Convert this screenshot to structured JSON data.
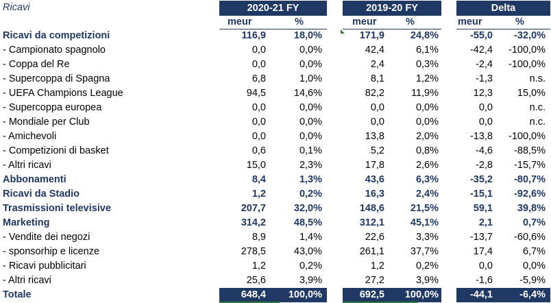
{
  "title": "Ricavi",
  "groups": [
    "2020-21 FY",
    "2019-20 FY",
    "Delta"
  ],
  "subheaders": [
    "meur",
    "%",
    "meur",
    "%",
    "meur",
    "%"
  ],
  "rows": [
    {
      "label": "Ricavi da competizioni",
      "bold": true,
      "v": [
        "116,9",
        "18,0%",
        "171,9",
        "24,8%",
        "-55,0",
        "-32,0%"
      ]
    },
    {
      "label": " - Campionato spagnolo",
      "bold": false,
      "v": [
        "0,0",
        "0,0%",
        "42,4",
        "6,1%",
        "-42,4",
        "-100,0%"
      ]
    },
    {
      "label": " - Coppa del Re",
      "bold": false,
      "v": [
        "0,0",
        "0,0%",
        "2,4",
        "0,3%",
        "-2,4",
        "-100,0%"
      ]
    },
    {
      "label": " - Supercoppa di Spagna",
      "bold": false,
      "v": [
        "6,8",
        "1,0%",
        "8,1",
        "1,2%",
        "-1,3",
        "n.s."
      ]
    },
    {
      "label": " - UEFA Champions League",
      "bold": false,
      "v": [
        "94,5",
        "14,6%",
        "82,2",
        "11,9%",
        "12,3",
        "15,0%"
      ]
    },
    {
      "label": " - Supercoppa europea",
      "bold": false,
      "v": [
        "0,0",
        "0,0%",
        "0,0",
        "0,0%",
        "0,0",
        "n.c."
      ]
    },
    {
      "label": " - Mondiale per Club",
      "bold": false,
      "v": [
        "0,0",
        "0,0%",
        "0,0",
        "0,0%",
        "0,0",
        "n.c."
      ]
    },
    {
      "label": " - Amichevoli",
      "bold": false,
      "v": [
        "0,0",
        "0,0%",
        "13,8",
        "2,0%",
        "-13,8",
        "-100,0%"
      ]
    },
    {
      "label": " - Competizioni di basket",
      "bold": false,
      "v": [
        "0,6",
        "0,1%",
        "5,2",
        "0,8%",
        "-4,6",
        "-88,5%"
      ]
    },
    {
      "label": " - Altri ricavi",
      "bold": false,
      "v": [
        "15,0",
        "2,3%",
        "17,8",
        "2,6%",
        "-2,8",
        "-15,7%"
      ]
    },
    {
      "label": "Abbonamenti",
      "bold": true,
      "v": [
        "8,4",
        "1,3%",
        "43,6",
        "6,3%",
        "-35,2",
        "-80,7%"
      ]
    },
    {
      "label": "Ricavi da Stadio",
      "bold": true,
      "v": [
        "1,2",
        "0,2%",
        "16,3",
        "2,4%",
        "-15,1",
        "-92,6%"
      ]
    },
    {
      "label": "Trasmissioni televisive",
      "bold": true,
      "v": [
        "207,7",
        "32,0%",
        "148,6",
        "21,5%",
        "59,1",
        "39,8%"
      ]
    },
    {
      "label": "Marketing",
      "bold": true,
      "v": [
        "314,2",
        "48,5%",
        "312,1",
        "45,1%",
        "2,1",
        "0,7%"
      ]
    },
    {
      "label": " - Vendite dei negozi",
      "bold": false,
      "v": [
        "8,9",
        "1,4%",
        "22,6",
        "3,3%",
        "-13,7",
        "-60,6%"
      ]
    },
    {
      "label": " - sponsorhip e licenze",
      "bold": false,
      "v": [
        "278,5",
        "43,0%",
        "261,1",
        "37,7%",
        "17,4",
        "6,7%"
      ]
    },
    {
      "label": " - Ricavi pubblicitari",
      "bold": false,
      "v": [
        "1,2",
        "0,2%",
        "1,2",
        "0,2%",
        "0,0",
        "0,0%"
      ]
    },
    {
      "label": " - Altri ricavi",
      "bold": false,
      "v": [
        "25,6",
        "3,9%",
        "27,2",
        "3,9%",
        "-1,6",
        "-5,9%"
      ]
    }
  ],
  "total": {
    "label": "Totale",
    "v": [
      "648,4",
      "100,0%",
      "692,5",
      "100,0%",
      "-44,1",
      "-6,4%"
    ]
  },
  "colors": {
    "header": "#1f3864",
    "marker": "#2e7d32"
  }
}
